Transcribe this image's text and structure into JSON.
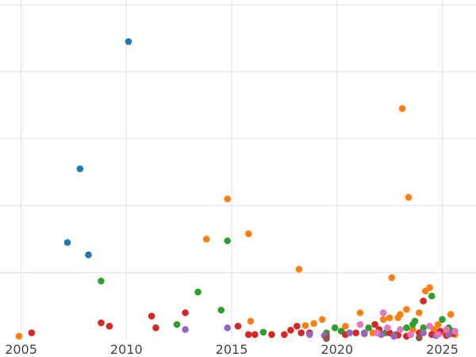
{
  "chart_data": {
    "type": "scatter",
    "title": "",
    "xlabel": "",
    "ylabel": "",
    "xlim": [
      2004.0,
      2026.6
    ],
    "ylim": [
      0,
      100
    ],
    "grid": true,
    "xticks": [
      2005,
      2010,
      2015,
      2020,
      2025
    ],
    "xtick_labels": [
      "2005",
      "2010",
      "2015",
      "2020",
      "2025"
    ],
    "yticks": [
      20,
      40,
      60,
      80,
      100
    ],
    "ytick_labels": [
      "",
      "",
      "",
      "",
      ""
    ],
    "series": [
      {
        "color": "#1f77b4",
        "points": [
          [
            2010.1,
            89
          ],
          [
            2007.8,
            51
          ],
          [
            2007.2,
            29
          ],
          [
            2008.2,
            25.3
          ]
        ]
      },
      {
        "color": "#ff7f0e",
        "points": [
          [
            2004.9,
            1
          ],
          [
            2013.8,
            30
          ],
          [
            2014.8,
            42
          ],
          [
            2015.8,
            31.6
          ],
          [
            2015.9,
            5.5
          ],
          [
            2018.2,
            21
          ],
          [
            2018.5,
            4.2
          ],
          [
            2018.9,
            4.8
          ],
          [
            2019.3,
            6
          ],
          [
            2020.4,
            4
          ],
          [
            2021.1,
            8
          ],
          [
            2021.7,
            2
          ],
          [
            2022.2,
            6
          ],
          [
            2022.5,
            6.5
          ],
          [
            2022.6,
            18.5
          ],
          [
            2022.9,
            6.5
          ],
          [
            2023.0,
            7.5
          ],
          [
            2023.1,
            69
          ],
          [
            2023.3,
            9
          ],
          [
            2023.4,
            42.5
          ],
          [
            2023.6,
            3
          ],
          [
            2023.9,
            8
          ],
          [
            2024.2,
            14.5
          ],
          [
            2024.4,
            15.5
          ],
          [
            2024.6,
            3
          ],
          [
            2024.8,
            4.5
          ],
          [
            2025.1,
            2
          ],
          [
            2025.4,
            7.5
          ],
          [
            2025.6,
            1.5
          ]
        ]
      },
      {
        "color": "#2ca02c",
        "points": [
          [
            2008.8,
            17.5
          ],
          [
            2012.4,
            4.5
          ],
          [
            2013.4,
            14.2
          ],
          [
            2014.5,
            8.8
          ],
          [
            2014.8,
            29.5
          ],
          [
            2016.5,
            2.2
          ],
          [
            2019.5,
            2
          ],
          [
            2019.9,
            3.5
          ],
          [
            2020.2,
            2.5
          ],
          [
            2021.5,
            3.5
          ],
          [
            2021.8,
            4.5
          ],
          [
            2022.3,
            2
          ],
          [
            2022.8,
            1.5
          ],
          [
            2023.3,
            3.5
          ],
          [
            2023.6,
            4.5
          ],
          [
            2023.7,
            5.5
          ],
          [
            2024.1,
            3.5
          ],
          [
            2024.5,
            13
          ],
          [
            2025.0,
            6
          ],
          [
            2025.3,
            3.5
          ],
          [
            2025.5,
            2.5
          ]
        ]
      },
      {
        "color": "#d62728",
        "points": [
          [
            2005.5,
            2
          ],
          [
            2008.8,
            5
          ],
          [
            2009.2,
            4
          ],
          [
            2011.2,
            7
          ],
          [
            2011.4,
            3.5
          ],
          [
            2012.8,
            8
          ],
          [
            2015.3,
            4
          ],
          [
            2015.8,
            1.5
          ],
          [
            2016.1,
            1.5
          ],
          [
            2016.9,
            1.5
          ],
          [
            2017.5,
            1.5
          ],
          [
            2017.8,
            2.8
          ],
          [
            2018.1,
            4
          ],
          [
            2018.3,
            2
          ],
          [
            2018.7,
            2
          ],
          [
            2019.5,
            1
          ],
          [
            2020.4,
            1.5
          ],
          [
            2020.9,
            2
          ],
          [
            2021.3,
            1.8
          ],
          [
            2021.8,
            4.5
          ],
          [
            2022.0,
            3
          ],
          [
            2022.5,
            2
          ],
          [
            2022.9,
            1.3
          ],
          [
            2023.3,
            1
          ],
          [
            2023.9,
            2
          ],
          [
            2024.1,
            11.5
          ],
          [
            2024.5,
            1.5
          ],
          [
            2024.9,
            2.5
          ],
          [
            2025.2,
            1.2
          ],
          [
            2025.5,
            1.8
          ]
        ]
      },
      {
        "color": "#9467bd",
        "points": [
          [
            2012.8,
            3
          ],
          [
            2014.8,
            3.5
          ],
          [
            2018.7,
            1.5
          ],
          [
            2019.4,
            1.2
          ],
          [
            2020.6,
            2
          ],
          [
            2021.3,
            2
          ],
          [
            2022.1,
            1.5
          ],
          [
            2022.7,
            1
          ],
          [
            2023.5,
            1.5
          ],
          [
            2024.1,
            2
          ],
          [
            2024.7,
            1.2
          ],
          [
            2025.3,
            1.5
          ]
        ]
      },
      {
        "color": "#8c564b",
        "points": [
          [
            2019.5,
            0.3
          ],
          [
            2023.9,
            0.5
          ]
        ]
      },
      {
        "color": "#e377c2",
        "points": [
          [
            2021.1,
            4.5
          ],
          [
            2021.9,
            2
          ],
          [
            2022.2,
            8
          ],
          [
            2022.4,
            3.5
          ],
          [
            2023.0,
            3
          ],
          [
            2023.5,
            1.5
          ],
          [
            2024.4,
            4
          ],
          [
            2024.8,
            1.5
          ],
          [
            2025.2,
            3
          ],
          [
            2025.6,
            2.5
          ]
        ]
      }
    ]
  }
}
